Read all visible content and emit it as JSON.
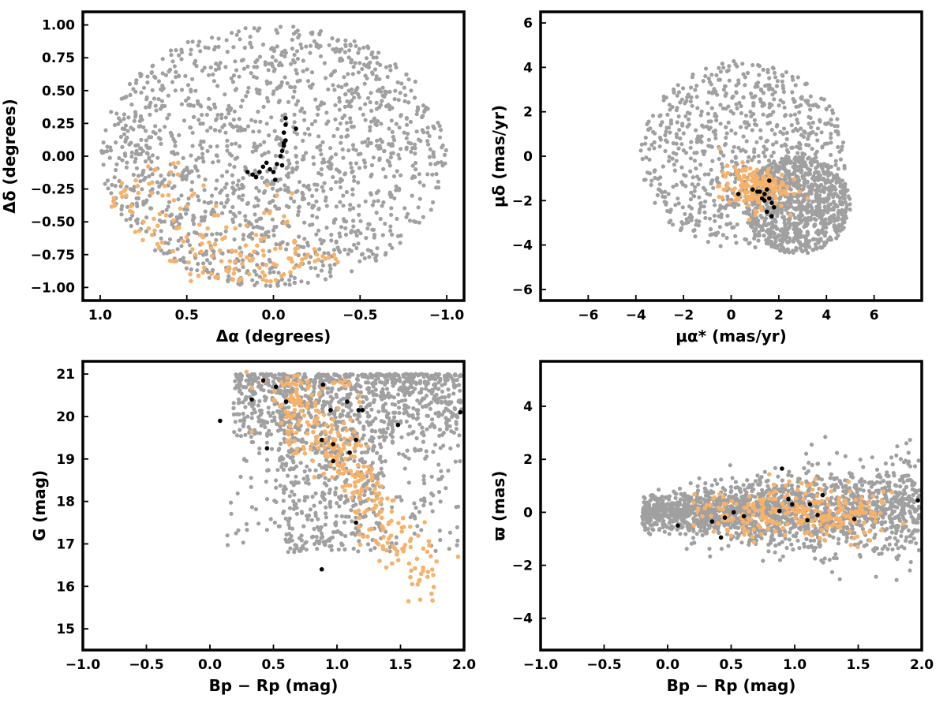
{
  "colors": {
    "field": "#a0a0a0",
    "orange": "#f6b26b",
    "black": "#000000"
  },
  "chart_data": [
    {
      "type": "scatter",
      "title": "",
      "xlabel": "Δα (degrees)",
      "ylabel": "Δδ (degrees)",
      "xlim": [
        1.1,
        -1.1
      ],
      "ylim": [
        -1.1,
        1.1
      ],
      "xticks": [
        1.0,
        0.5,
        0.0,
        -0.5,
        -1.0
      ],
      "xtick_labels": [
        "1.0",
        "0.5",
        "0.0",
        "−0.5",
        "−1.0"
      ],
      "yticks": [
        -1.0,
        -0.75,
        -0.5,
        -0.25,
        0.0,
        0.25,
        0.5,
        0.75,
        1.0
      ],
      "ytick_labels": [
        "−1.00",
        "−0.75",
        "−0.50",
        "−0.25",
        "0.00",
        "0.25",
        "0.50",
        "0.75",
        "1.00"
      ],
      "grid": false,
      "field_stars": {
        "count": 1500,
        "distribution": "uniform in unit circle",
        "center": [
          0,
          0
        ],
        "radius": 1.0
      },
      "series": [
        {
          "color": "#f6b26b",
          "note_x": [
            0.95,
            0.7,
            0.2
          ],
          "points": [
            [
              0.92,
              -0.35
            ],
            [
              0.88,
              -0.28
            ],
            [
              0.85,
              -0.3
            ],
            [
              0.82,
              -0.38
            ],
            [
              0.78,
              -0.28
            ],
            [
              0.75,
              -0.5
            ],
            [
              0.72,
              -0.55
            ],
            [
              0.7,
              -0.6
            ],
            [
              0.7,
              -0.2
            ],
            [
              0.68,
              -0.1
            ],
            [
              0.66,
              -0.7
            ],
            [
              0.64,
              -0.3
            ],
            [
              0.62,
              -0.45
            ],
            [
              0.6,
              -0.2
            ],
            [
              0.58,
              -0.8
            ],
            [
              0.56,
              -0.55
            ],
            [
              0.55,
              -0.05
            ],
            [
              0.52,
              -0.65
            ],
            [
              0.5,
              -0.38
            ],
            [
              0.48,
              -0.9
            ],
            [
              0.47,
              -0.3
            ],
            [
              0.45,
              -0.75
            ],
            [
              0.42,
              -0.6
            ],
            [
              0.4,
              -0.85
            ],
            [
              0.38,
              -0.55
            ],
            [
              0.36,
              -0.7
            ],
            [
              0.34,
              -0.45
            ],
            [
              0.32,
              -0.92
            ],
            [
              0.3,
              -0.8
            ],
            [
              0.28,
              -0.62
            ],
            [
              0.26,
              -0.88
            ],
            [
              0.24,
              -0.72
            ],
            [
              0.22,
              -0.55
            ],
            [
              0.2,
              -0.95
            ],
            [
              0.18,
              -0.82
            ],
            [
              0.16,
              -0.68
            ],
            [
              0.14,
              -0.9
            ],
            [
              0.12,
              -0.78
            ],
            [
              0.1,
              -0.6
            ],
            [
              0.08,
              -0.85
            ],
            [
              0.06,
              -0.72
            ],
            [
              0.04,
              -0.95
            ],
            [
              0.02,
              -0.42
            ],
            [
              0.0,
              -0.82
            ],
            [
              -0.02,
              -0.3
            ],
            [
              -0.04,
              -0.7
            ],
            [
              -0.06,
              -0.9
            ],
            [
              -0.08,
              -0.5
            ],
            [
              -0.1,
              -0.78
            ],
            [
              -0.12,
              -0.85
            ],
            [
              -0.14,
              -0.7
            ],
            [
              -0.16,
              -0.82
            ],
            [
              -0.2,
              -0.75
            ],
            [
              -0.24,
              -0.8
            ],
            [
              -0.3,
              -0.78
            ],
            [
              -0.35,
              -0.75
            ]
          ]
        },
        {
          "color": "#000000",
          "points": [
            [
              0.15,
              -0.12
            ],
            [
              0.12,
              -0.14
            ],
            [
              0.1,
              -0.16
            ],
            [
              0.08,
              -0.12
            ],
            [
              0.06,
              -0.08
            ],
            [
              0.04,
              -0.05
            ],
            [
              0.02,
              -0.1
            ],
            [
              0.0,
              -0.12
            ],
            [
              -0.01,
              -0.18
            ],
            [
              -0.02,
              -0.06
            ],
            [
              -0.04,
              0.0
            ],
            [
              -0.05,
              0.04
            ],
            [
              -0.06,
              0.1
            ],
            [
              -0.06,
              0.08
            ],
            [
              -0.07,
              0.12
            ],
            [
              -0.06,
              0.18
            ],
            [
              -0.07,
              0.24
            ],
            [
              -0.07,
              0.29
            ],
            [
              -0.13,
              0.21
            ],
            [
              -0.05,
              -0.07
            ]
          ]
        }
      ]
    },
    {
      "type": "scatter",
      "title": "",
      "xlabel": "μα* (mas/yr)",
      "ylabel": "μδ (mas/yr)",
      "xlim": [
        -8,
        8
      ],
      "ylim": [
        -6.5,
        6.5
      ],
      "xticks": [
        -6,
        -4,
        -2,
        0,
        2,
        4,
        6
      ],
      "xtick_labels": [
        "−6",
        "−4",
        "−2",
        "0",
        "2",
        "4",
        "6"
      ],
      "yticks": [
        -6,
        -4,
        -2,
        0,
        2,
        4,
        6
      ],
      "ytick_labels": [
        "−6",
        "−4",
        "−2",
        "0",
        "2",
        "4",
        "6"
      ],
      "grid": false,
      "field_stars": {
        "count": 1600,
        "clusters": [
          {
            "center": [
              0.8,
              0.0
            ],
            "spread": 4.3,
            "weight": 0.5
          },
          {
            "center": [
              2.8,
              -2.2
            ],
            "spread": 2.0,
            "weight": 0.5
          }
        ]
      },
      "series": [
        {
          "color": "#f6b26b",
          "cluster": {
            "center": [
              0.9,
              -1.4
            ],
            "spread": 0.7,
            "count": 160
          }
        },
        {
          "color": "#000000",
          "points": [
            [
              0.3,
              -1.7
            ],
            [
              0.9,
              -1.5
            ],
            [
              1.1,
              -1.6
            ],
            [
              1.3,
              -1.9
            ],
            [
              1.4,
              -1.7
            ],
            [
              1.5,
              -1.5
            ],
            [
              1.6,
              -1.1
            ],
            [
              1.6,
              -1.9
            ],
            [
              1.7,
              -2.1
            ],
            [
              1.8,
              -2.3
            ],
            [
              1.7,
              -2.7
            ],
            [
              1.5,
              -2.5
            ],
            [
              1.2,
              -1.6
            ],
            [
              1.4,
              -2.0
            ]
          ]
        }
      ]
    },
    {
      "type": "scatter",
      "title": "",
      "xlabel": "Bp − Rp (mag)",
      "ylabel": "G (mag)",
      "xlim": [
        -1.0,
        2.0
      ],
      "ylim": [
        14.5,
        21.3
      ],
      "xticks": [
        -1.0,
        -0.5,
        0.0,
        0.5,
        1.0,
        1.5,
        2.0
      ],
      "xtick_labels": [
        "−1.0",
        "−0.5",
        "0.0",
        "0.5",
        "1.0",
        "1.5",
        "2.0"
      ],
      "yticks": [
        15,
        16,
        17,
        18,
        19,
        20,
        21
      ],
      "ytick_labels": [
        "15",
        "16",
        "17",
        "18",
        "19",
        "20",
        "21"
      ],
      "grid": false,
      "field_stars": {
        "count": 1900,
        "note": "dense faint band near G 19–21, diagonal sequence to G≈16 near Bp−Rp 1.0"
      },
      "series": [
        {
          "color": "#f6b26b",
          "sequence": {
            "from": [
              0.55,
              20.9
            ],
            "to": [
              1.75,
              16.0
            ]
          },
          "count": 260
        },
        {
          "color": "#000000",
          "points": [
            [
              0.42,
              20.85
            ],
            [
              0.52,
              20.7
            ],
            [
              0.89,
              20.75
            ],
            [
              0.33,
              20.4
            ],
            [
              0.6,
              20.35
            ],
            [
              1.08,
              20.35
            ],
            [
              0.95,
              20.15
            ],
            [
              1.17,
              20.15
            ],
            [
              1.2,
              20.15
            ],
            [
              0.08,
              19.9
            ],
            [
              1.97,
              20.1
            ],
            [
              1.48,
              19.8
            ],
            [
              0.45,
              19.25
            ],
            [
              0.97,
              19.35
            ],
            [
              0.88,
              19.45
            ],
            [
              1.15,
              19.45
            ],
            [
              1.1,
              19.15
            ],
            [
              0.97,
              18.95
            ],
            [
              1.15,
              17.5
            ],
            [
              0.88,
              16.4
            ]
          ]
        }
      ]
    },
    {
      "type": "scatter",
      "title": "",
      "xlabel": "Bp − Rp (mag)",
      "ylabel": "ϖ (mas)",
      "xlim": [
        -1.0,
        2.0
      ],
      "ylim": [
        -5.2,
        5.7
      ],
      "xticks": [
        -1.0,
        -0.5,
        0.0,
        0.5,
        1.0,
        1.5,
        2.0
      ],
      "xtick_labels": [
        "−1.0",
        "−0.5",
        "0.0",
        "0.5",
        "1.0",
        "1.5",
        "2.0"
      ],
      "yticks": [
        -4,
        -2,
        0,
        2,
        4
      ],
      "ytick_labels": [
        "−4",
        "−2",
        "0",
        "2",
        "4"
      ],
      "grid": false,
      "field_stars": {
        "count": 1900,
        "note": "horizontal band around ϖ≈0 spreading upward with color"
      },
      "series": [
        {
          "color": "#f6b26b",
          "count": 260
        },
        {
          "color": "#000000",
          "points": [
            [
              0.08,
              -0.5
            ],
            [
              0.35,
              -0.35
            ],
            [
              0.42,
              -0.95
            ],
            [
              0.45,
              -0.2
            ],
            [
              0.52,
              0.0
            ],
            [
              0.6,
              -0.15
            ],
            [
              0.88,
              0.05
            ],
            [
              0.9,
              1.65
            ],
            [
              0.95,
              0.5
            ],
            [
              0.98,
              0.3
            ],
            [
              1.1,
              -0.3
            ],
            [
              1.12,
              0.3
            ],
            [
              1.18,
              -0.1
            ],
            [
              1.22,
              0.65
            ],
            [
              1.47,
              -0.25
            ],
            [
              1.97,
              0.45
            ]
          ]
        }
      ]
    }
  ]
}
